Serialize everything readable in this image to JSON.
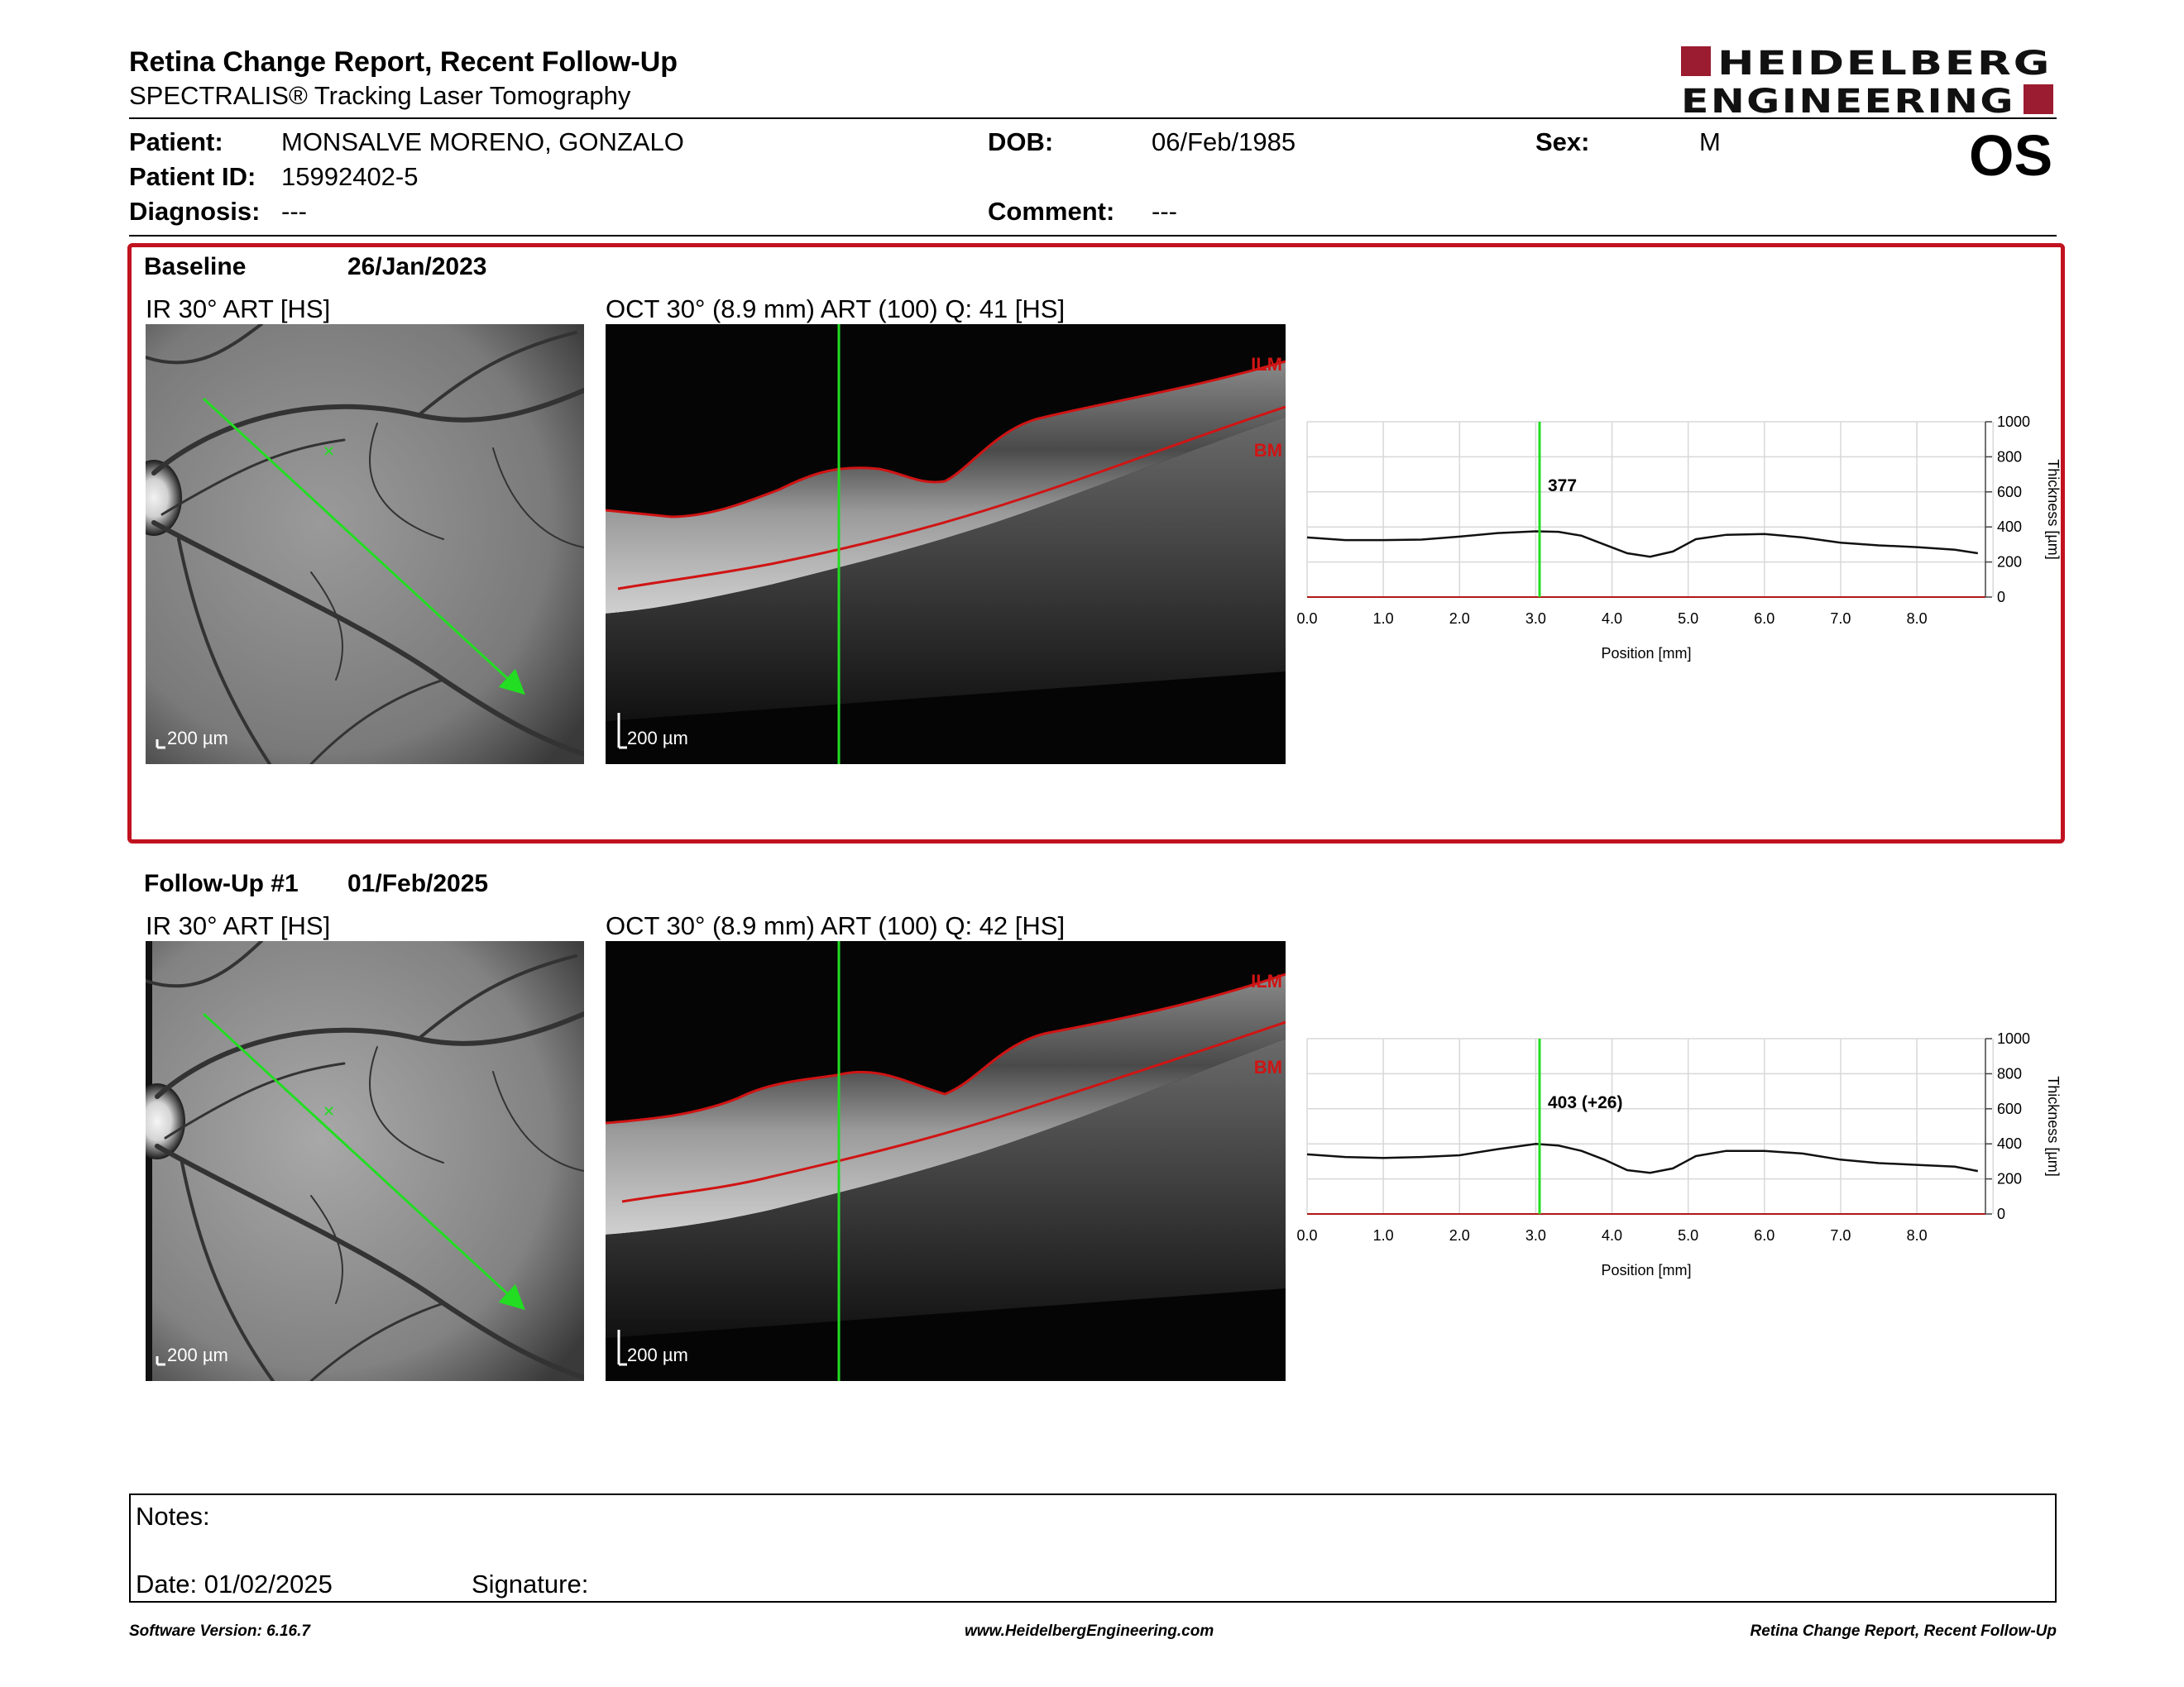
{
  "header": {
    "title": "Retina Change Report, Recent Follow-Up",
    "subtitle": "SPECTRALIS® Tracking Laser Tomography",
    "logo": "HEIDELBERG ENGINEERING",
    "logo_line1": "HEIDELBERG",
    "logo_line2": "ENGINEERING"
  },
  "patient": {
    "patient_label": "Patient:",
    "patient_value": "MONSALVE MORENO, GONZALO",
    "id_label": "Patient ID:",
    "id_value": "15992402-5",
    "diagnosis_label": "Diagnosis:",
    "diagnosis_value": "---",
    "dob_label": "DOB:",
    "dob_value": "06/Feb/1985",
    "comment_label": "Comment:",
    "comment_value": "---",
    "sex_label": "Sex:",
    "sex_value": "M",
    "eye": "OS"
  },
  "baseline": {
    "title": "Baseline",
    "date": "26/Jan/2023",
    "ir_title": "IR 30° ART [HS]",
    "oct_title": "OCT 30° (8.9 mm) ART (100) Q: 41 [HS]",
    "scale_label": "200 µm",
    "ilm_label": "ILM",
    "bm_label": "BM",
    "marker_value": "377"
  },
  "followup": {
    "title": "Follow-Up #1",
    "date": "01/Feb/2025",
    "ir_title": "IR 30° ART [HS]",
    "oct_title": "OCT 30° (8.9 mm) ART (100) Q: 42 [HS]",
    "scale_label": "200 µm",
    "ilm_label": "ILM",
    "bm_label": "BM",
    "marker_value": "403 (+26)"
  },
  "chart_data": [
    {
      "type": "line",
      "xlabel": "Position [mm]",
      "ylabel": "Thickness [µm]",
      "xlim": [
        0,
        8.9
      ],
      "ylim": [
        0,
        1000
      ],
      "xticks": [
        "0.0",
        "1.0",
        "2.0",
        "3.0",
        "4.0",
        "5.0",
        "6.0",
        "7.0",
        "8.0"
      ],
      "yticks": [
        "0",
        "200",
        "400",
        "600",
        "800",
        "1000"
      ],
      "marker_x": 3.05,
      "marker_label": "377",
      "x": [
        0.0,
        0.5,
        1.0,
        1.5,
        2.0,
        2.5,
        3.0,
        3.3,
        3.6,
        3.9,
        4.2,
        4.5,
        4.8,
        5.1,
        5.5,
        6.0,
        6.5,
        7.0,
        7.5,
        8.0,
        8.5,
        8.8
      ],
      "values": [
        340,
        325,
        325,
        328,
        345,
        365,
        375,
        372,
        350,
        300,
        250,
        230,
        260,
        330,
        355,
        360,
        340,
        310,
        295,
        285,
        270,
        250
      ]
    },
    {
      "type": "line",
      "xlabel": "Position [mm]",
      "ylabel": "Thickness [µm]",
      "xlim": [
        0,
        8.9
      ],
      "ylim": [
        0,
        1000
      ],
      "xticks": [
        "0.0",
        "1.0",
        "2.0",
        "3.0",
        "4.0",
        "5.0",
        "6.0",
        "7.0",
        "8.0"
      ],
      "yticks": [
        "0",
        "200",
        "400",
        "600",
        "800",
        "1000"
      ],
      "marker_x": 3.05,
      "marker_label": "403 (+26)",
      "x": [
        0.0,
        0.5,
        1.0,
        1.5,
        2.0,
        2.5,
        3.0,
        3.3,
        3.6,
        3.9,
        4.2,
        4.5,
        4.8,
        5.1,
        5.5,
        6.0,
        6.5,
        7.0,
        7.5,
        8.0,
        8.5,
        8.8
      ],
      "values": [
        340,
        325,
        320,
        325,
        335,
        370,
        400,
        390,
        360,
        310,
        250,
        235,
        260,
        330,
        360,
        360,
        345,
        310,
        290,
        280,
        270,
        245
      ]
    }
  ],
  "notes": {
    "notes_label": "Notes:",
    "date_label": "Date: 01/02/2025",
    "signature_label": "Signature:"
  },
  "footer": {
    "software": "Software Version: 6.16.7",
    "website": "www.HeidelbergEngineering.com",
    "report": "Retina Change Report, Recent Follow-Up"
  },
  "colors": {
    "brand_red": "#9b1b30",
    "frame_red": "#c1121f",
    "scan_green": "#22dd22",
    "layer_red": "#d01414"
  }
}
